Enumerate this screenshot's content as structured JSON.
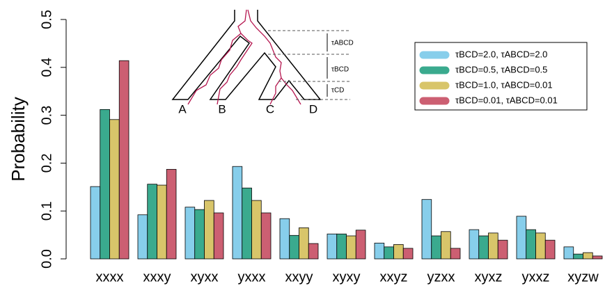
{
  "chart_data": {
    "type": "bar",
    "ylabel": "Probability",
    "categories": [
      "xxxx",
      "xxxy",
      "xyxx",
      "yxxx",
      "xxyy",
      "xyxy",
      "xxyz",
      "yzxx",
      "xyxz",
      "yxxz",
      "xyzw"
    ],
    "series": [
      {
        "name": "τBCD=2.0, τABCD=2.0",
        "color": "#87ceeb",
        "values": [
          0.151,
          0.092,
          0.108,
          0.193,
          0.084,
          0.052,
          0.033,
          0.124,
          0.061,
          0.089,
          0.025
        ]
      },
      {
        "name": "τBCD=0.5, τABCD=0.5",
        "color": "#3aaa8e",
        "values": [
          0.312,
          0.156,
          0.103,
          0.148,
          0.049,
          0.052,
          0.025,
          0.048,
          0.048,
          0.061,
          0.01
        ]
      },
      {
        "name": "τBCD=1.0, τABCD=0.01",
        "color": "#d8c56a",
        "values": [
          0.291,
          0.154,
          0.122,
          0.122,
          0.065,
          0.048,
          0.03,
          0.057,
          0.054,
          0.054,
          0.013
        ]
      },
      {
        "name": "τBCD=0.01, τABCD=0.01",
        "color": "#cc5f72",
        "values": [
          0.414,
          0.187,
          0.096,
          0.096,
          0.032,
          0.06,
          0.022,
          0.022,
          0.039,
          0.039,
          0.006
        ]
      }
    ],
    "ylim": [
      0,
      0.5
    ],
    "yticks": [
      {
        "value": 0,
        "label": "0.0"
      },
      0.1,
      0.2,
      0.3,
      0.4,
      0.5
    ],
    "legend": "top-right",
    "annotations": [
      "A",
      "B",
      "C",
      "D",
      "τABCD",
      "τBCD",
      "τCD"
    ]
  }
}
